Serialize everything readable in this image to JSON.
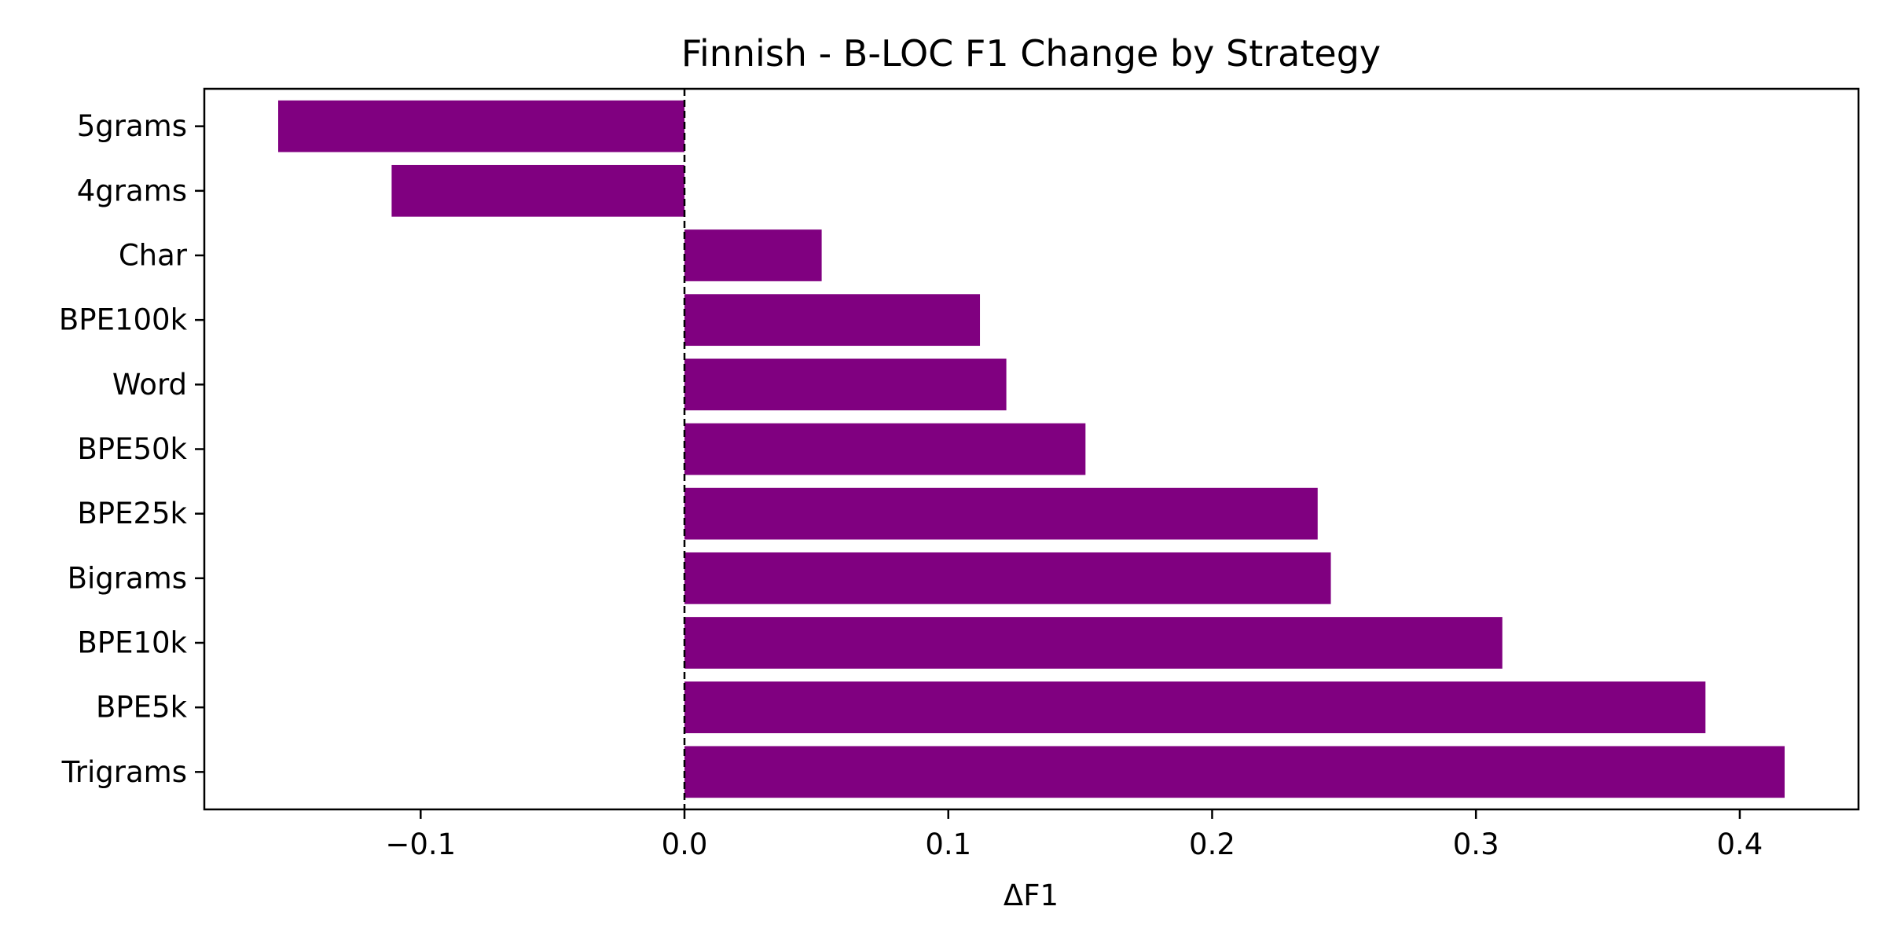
{
  "chart_data": {
    "type": "bar",
    "orientation": "horizontal",
    "title": "Finnish - B-LOC F1 Change by Strategy",
    "xlabel": "ΔF1",
    "ylabel": "",
    "categories": [
      "5grams",
      "4grams",
      "Char",
      "BPE100k",
      "Word",
      "BPE50k",
      "BPE25k",
      "Bigrams",
      "BPE10k",
      "BPE5k",
      "Trigrams"
    ],
    "values": [
      -0.154,
      -0.111,
      0.052,
      0.112,
      0.122,
      0.152,
      0.24,
      0.245,
      0.31,
      0.387,
      0.417
    ],
    "xlim": [
      -0.182,
      0.445
    ],
    "xticks": [
      -0.1,
      0.0,
      0.1,
      0.2,
      0.3,
      0.4
    ],
    "xtick_labels": [
      "−0.1",
      "0.0",
      "0.1",
      "0.2",
      "0.3",
      "0.4"
    ],
    "reference_line": {
      "x": 0.0,
      "style": "dashed"
    },
    "grid": false,
    "legend": "none",
    "colors": {
      "bar": "#800080",
      "axis": "#000000",
      "reference_line": "#000000"
    }
  }
}
